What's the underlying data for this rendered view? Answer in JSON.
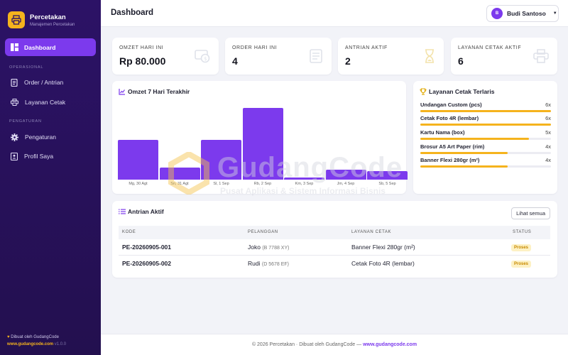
{
  "brand": {
    "title": "Percetakan",
    "subtitle": "Manajemen Percetakan"
  },
  "nav": {
    "dashboard": "Dashboard",
    "section_operasional": "OPERASIONAL",
    "order": "Order / Antrian",
    "layanan": "Layanan Cetak",
    "section_pengaturan": "PENGATURAN",
    "pengaturan": "Pengaturan",
    "profil": "Profil Saya"
  },
  "sidebar_footer": {
    "made_by": "Dibuat oleh GudangCode",
    "link": "www.gudangcode.com",
    "version": "v1.0.0"
  },
  "header": {
    "title": "Dashboard",
    "user_initial": "B",
    "user_name": "Budi Santoso"
  },
  "stats": [
    {
      "label": "OMZET HARI INI",
      "value": "Rp 80.000"
    },
    {
      "label": "ORDER HARI INI",
      "value": "4"
    },
    {
      "label": "ANTRIAN AKTIF",
      "value": "2"
    },
    {
      "label": "LAYANAN CETAK AKTIF",
      "value": "6"
    }
  ],
  "chart_data": {
    "type": "bar",
    "title": "Omzet 7 Hari Terakhir",
    "categories": [
      "Mg, 30 Agt",
      "Sn, 31 Agt",
      "Sl, 1 Sep",
      "Rb, 2 Sep",
      "Km, 3 Sep",
      "Jm, 4 Sep",
      "Sb, 5 Sep"
    ],
    "values": [
      55,
      17,
      55,
      100,
      3,
      14,
      12
    ],
    "ylim": [
      0,
      100
    ]
  },
  "layanan_terlaris": {
    "title": "Layanan Cetak Terlaris",
    "items": [
      {
        "name": "Undangan Custom (pcs)",
        "count": "6x",
        "value": 6
      },
      {
        "name": "Cetak Foto 4R (lembar)",
        "count": "6x",
        "value": 6
      },
      {
        "name": "Kartu Nama (box)",
        "count": "5x",
        "value": 5
      },
      {
        "name": "Brosur A5 Art Paper (rim)",
        "count": "4x",
        "value": 4
      },
      {
        "name": "Banner Flexi 280gr (m²)",
        "count": "4x",
        "value": 4
      }
    ],
    "max": 6
  },
  "antrian": {
    "title": "Antrian Aktif",
    "button": "Lihat semua",
    "headers": [
      "KODE",
      "PELANGGAN",
      "LAYANAN CETAK",
      "STATUS"
    ],
    "rows": [
      {
        "kode": "PE-20260905-001",
        "nama": "Joko",
        "plat": "(B 7788 XY)",
        "layanan": "Banner Flexi 280gr (m²)",
        "status": "Proses"
      },
      {
        "kode": "PE-20260905-002",
        "nama": "Rudi",
        "plat": "(D 5678 EF)",
        "layanan": "Cetak Foto 4R (lembar)",
        "status": "Proses"
      }
    ]
  },
  "footer": {
    "text": "© 2026 Percetakan · Dibuat oleh GudangCode — ",
    "link": "www.gudangcode.com"
  },
  "watermark": {
    "title": "GudangCode",
    "subtitle": "Pusat Aplikasi & Sistem Informasi Bisnis"
  },
  "colors": {
    "accent": "#7c3aed",
    "sidebar": "#2c1266",
    "highlight": "#f5b31d"
  }
}
